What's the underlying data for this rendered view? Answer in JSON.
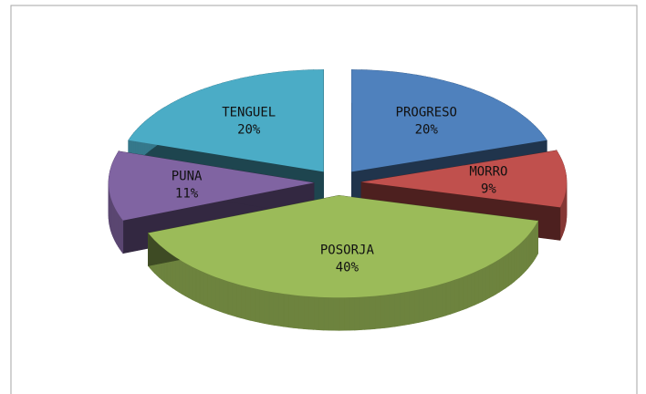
{
  "chart_data": {
    "type": "pie",
    "categories": [
      "PROGRESO",
      "MORRO",
      "POSORJA",
      "PUNA",
      "TENGUEL"
    ],
    "values": [
      20,
      9,
      40,
      11,
      20
    ],
    "value_labels": [
      "20%",
      "9%",
      "40%",
      "11%",
      "20%"
    ],
    "colors": [
      "#4f81bd",
      "#c0504d",
      "#9bbb59",
      "#8064a2",
      "#4bacc6"
    ]
  }
}
